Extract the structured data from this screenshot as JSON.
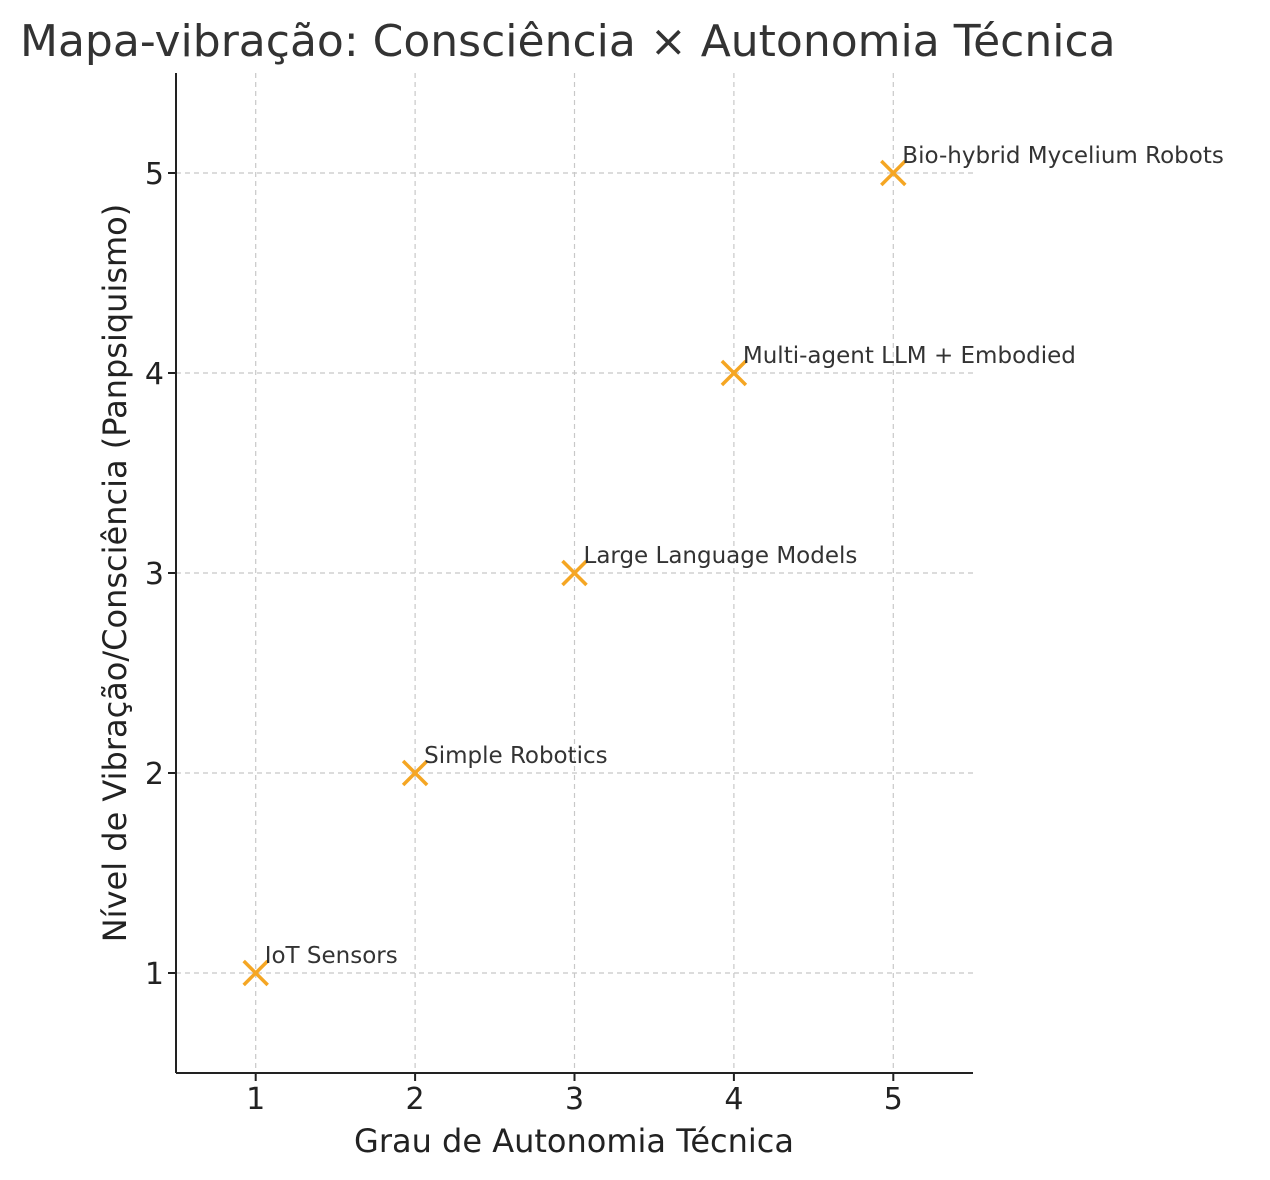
{
  "chart_data": {
    "type": "scatter",
    "title": "Mapa-vibração: Consciência × Autonomia Técnica",
    "xlabel": "Grau de Autonomia Técnica",
    "ylabel": "Nível de Vibração/Consciência (Panpsiquismo)",
    "xlim": [
      0.5,
      5.5
    ],
    "ylim": [
      0.5,
      5.5
    ],
    "xticks": [
      1,
      2,
      3,
      4,
      5
    ],
    "yticks": [
      1,
      2,
      3,
      4,
      5
    ],
    "grid": true,
    "marker": "x",
    "marker_color": "#f5a623",
    "points": [
      {
        "x": 1,
        "y": 1,
        "label": "IoT Sensors"
      },
      {
        "x": 2,
        "y": 2,
        "label": "Simple Robotics"
      },
      {
        "x": 3,
        "y": 3,
        "label": "Large Language Models"
      },
      {
        "x": 4,
        "y": 4,
        "label": "Multi-agent LLM + Embodied"
      },
      {
        "x": 5,
        "y": 5,
        "label": "Bio-hybrid Mycelium Robots"
      }
    ]
  }
}
